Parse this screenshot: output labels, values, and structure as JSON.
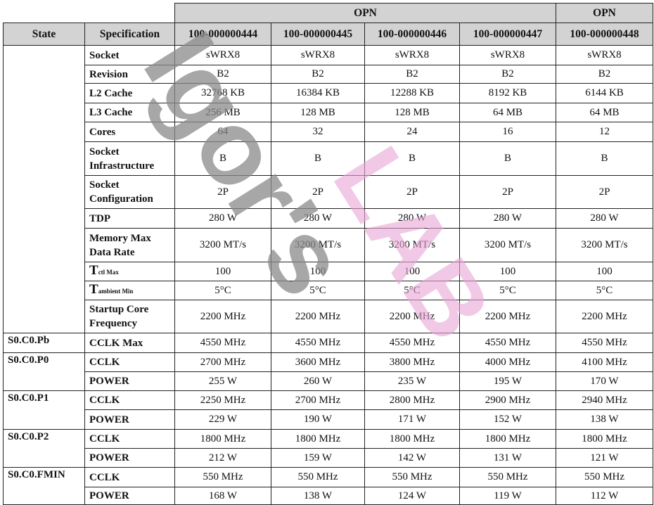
{
  "header": {
    "opn_label": "OPN",
    "state": "State",
    "specification": "Specification",
    "opns": [
      "100-000000444",
      "100-000000445",
      "100-000000446",
      "100-000000447",
      "100-000000448"
    ]
  },
  "rows": [
    {
      "state": "",
      "spec": "Socket",
      "values": [
        "sWRX8",
        "sWRX8",
        "sWRX8",
        "sWRX8",
        "sWRX8"
      ]
    },
    {
      "spec": "Revision",
      "values": [
        "B2",
        "B2",
        "B2",
        "B2",
        "B2"
      ]
    },
    {
      "spec": "L2 Cache",
      "values": [
        "32768 KB",
        "16384 KB",
        "12288 KB",
        "8192 KB",
        "6144 KB"
      ]
    },
    {
      "spec": "L3 Cache",
      "values": [
        "256 MB",
        "128 MB",
        "128 MB",
        "64 MB",
        "64 MB"
      ]
    },
    {
      "spec": "Cores",
      "values": [
        "64",
        "32",
        "24",
        "16",
        "12"
      ]
    },
    {
      "spec": "Socket Infrastructure",
      "values": [
        "B",
        "B",
        "B",
        "B",
        "B"
      ]
    },
    {
      "spec": "Socket Configuration",
      "values": [
        "2P",
        "2P",
        "2P",
        "2P",
        "2P"
      ]
    },
    {
      "spec": "TDP",
      "values": [
        "280 W",
        "280 W",
        "280 W",
        "280 W",
        "280 W"
      ]
    },
    {
      "spec": "Memory Max Data Rate",
      "values": [
        "3200 MT/s",
        "3200 MT/s",
        "3200 MT/s",
        "3200 MT/s",
        "3200 MT/s"
      ]
    },
    {
      "spec": "T",
      "spec_sub": "ctl Max",
      "values": [
        "100",
        "100",
        "100",
        "100",
        "100"
      ]
    },
    {
      "spec": "T",
      "spec_sub": "ambient Min",
      "values": [
        "5°C",
        "5°C",
        "5°C",
        "5°C",
        "5°C"
      ]
    },
    {
      "spec": "Startup Core Frequency",
      "values": [
        "2200 MHz",
        "2200 MHz",
        "2200 MHz",
        "2200 MHz",
        "2200 MHz"
      ]
    },
    {
      "state": "S0.C0.Pb",
      "spec": "CCLK Max",
      "values": [
        "4550 MHz",
        "4550 MHz",
        "4550 MHz",
        "4550 MHz",
        "4550 MHz"
      ]
    },
    {
      "state": "S0.C0.P0",
      "spec": "CCLK",
      "values": [
        "2700 MHz",
        "3600 MHz",
        "3800 MHz",
        "4000 MHz",
        "4100 MHz"
      ]
    },
    {
      "spec": "POWER",
      "values": [
        "255 W",
        "260 W",
        "235 W",
        "195 W",
        "170 W"
      ]
    },
    {
      "state": "S0.C0.P1",
      "spec": "CCLK",
      "values": [
        "2250 MHz",
        "2700 MHz",
        "2800 MHz",
        "2900 MHz",
        "2940 MHz"
      ]
    },
    {
      "spec": "POWER",
      "values": [
        "229 W",
        "190 W",
        "171 W",
        "152 W",
        "138 W"
      ]
    },
    {
      "state": "S0.C0.P2",
      "spec": "CCLK",
      "values": [
        "1800 MHz",
        "1800 MHz",
        "1800 MHz",
        "1800 MHz",
        "1800 MHz"
      ]
    },
    {
      "spec": "POWER",
      "values": [
        "212 W",
        "159 W",
        "142 W",
        "131 W",
        "121 W"
      ]
    },
    {
      "state": "S0.C0.FMIN",
      "spec": "CCLK",
      "values": [
        "550 MHz",
        "550 MHz",
        "550 MHz",
        "550 MHz",
        "550 MHz"
      ]
    },
    {
      "spec": "POWER",
      "values": [
        "168 W",
        "138 W",
        "124 W",
        "119 W",
        "112 W"
      ]
    }
  ],
  "watermark": {
    "text_gray": "Igor's",
    "text_pink": "LAB",
    "color_gray": "#8a8a8a",
    "color_pink": "#e9a6d6"
  }
}
